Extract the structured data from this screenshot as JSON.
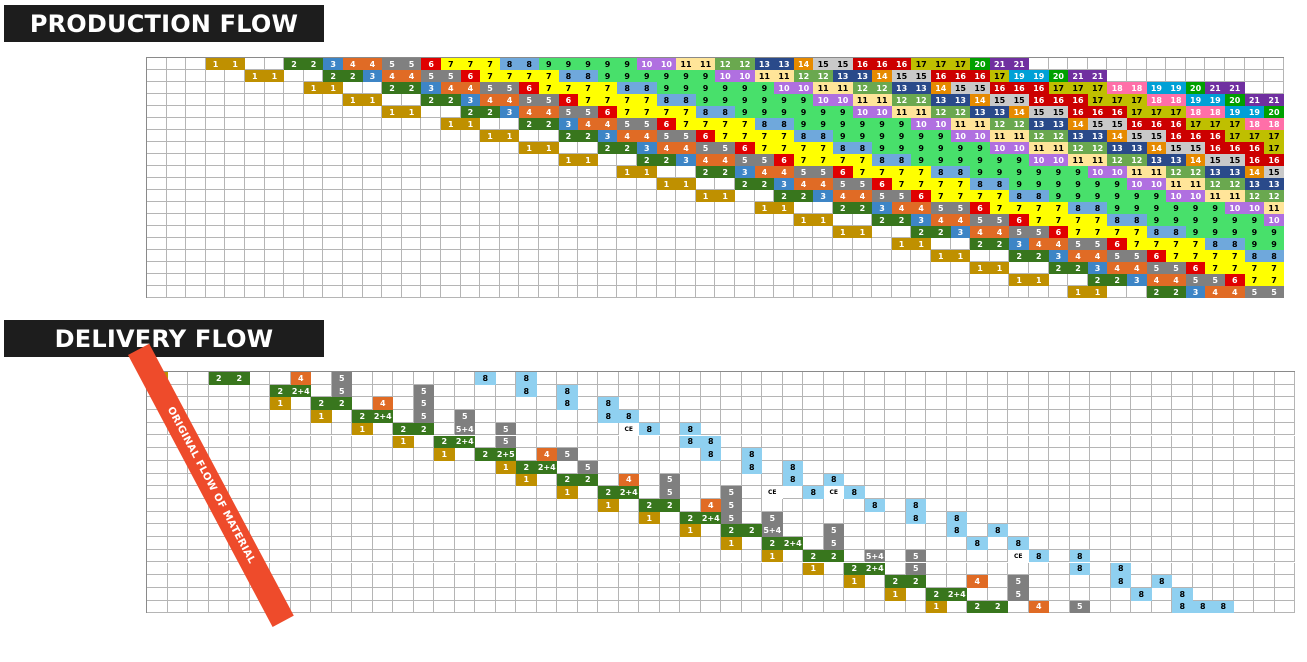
{
  "production": {
    "title": "PRODUCTION FLOW",
    "rows": [
      "1 1 . . 2 2 3 4 4 5 5 6 7 7 7 8 8 9 9 9 9 9 10 10 11 11 12 12 13 13 14 15 15 16 16 16 17 17 17 20 21 21",
      "1 1 . . 2 2 3 4 4 5 5 6 7 7 7 7 8 8 9 9 9 9 9 9 10 10 11 11 12 12 13 13 14 15 15 16 16 16 17 19 19 20 21 21",
      "1 1 . . 2 2 3 4 4 5 5 6 7 7 7 7 8 8 9 9 9 9 9 9 10 10 11 11 12 12 13 13 14 15 15 16 16 16 17 17 17 18 18 19 19 20 21 21",
      "1 1 . . 2 2 3 4 4 5 5 6 7 7 7 7 8 8 9 9 9 9 9 9 10 10 11 11 12 12 13 13 14 15 15 16 16 16 17 17 17 18 18 19 19 20 21 21",
      "1 1 . . 2 2 3 4 4 5 5 6 7 7 7 7 8 8 9 9 9 9 9 9 10 10 11 11 12 12 13 13 14 15 15 16 16 16 17 17 17 18 18 19 19 20",
      "1 1 . . 2 2 3 4 4 5 5 6 7 7 7 7 8 8 9 9 9 9 9 9 10 10 11 11 12 12 13 13 14 15 15 16 16 16 17 17 17 18 18 19",
      "1 1 . . 2 2 3 4 4 5 5 6 7 7 7 7 8 8 9 9 9 9 9 9 10 10 11 11 12 12 13 13 14 15 15 16 16 16 17 17 17 18",
      "1 1 . . 2 2 3 4 4 5 5 6 7 7 7 7 8 8 9 9 9 9 9 9 10 10 11 11 12 12 13 13 14 15 15 16 16 16 17 17",
      "1 1 . . 2 2 3 4 4 5 5 6 7 7 7 7 8 8 9 9 9 9 9 9 10 10 11 11 12 12 13 13 14 15 15 16 16 16",
      "1 1 . . 2 2 3 4 4 5 5 6 7 7 7 7 8 8 9 9 9 9 9 9 10 10 11 11 12 12 13 13 14 15 15 16",
      "1 1 . . 2 2 3 4 4 5 5 6 7 7 7 7 8 8 9 9 9 9 9 9 10 10 11 11 12 12 13 13 14 15",
      "1 1 . . 2 2 3 4 4 5 5 6 7 7 7 7 8 8 9 9 9 9 9 9 10 10 11 11 12 12 13",
      "1 1 . . 2 2 3 4 4 5 5 6 7 7 7 7 8 8 9 9 9 9 9 9 10 10 11 11 12 12",
      "1 1 . . 2 2 3 4 4 5 5 6 7 7 7 7 8 8 9 9 9 9 9 9 10 10 11 11",
      "1 1 . . 2 2 3 4 4 5 5 6 7 7 7 7 8 8 9 9 9 9 9 9 10 10",
      "1 1 . . 2 2 3 4 4 5 5 6 7 7 7 7 8 8 9 9 9 9 9 9",
      "1 1 . . 2 2 3 4 4 5 5 6 7 7 7 7 8 8 9 9 9 9",
      "1 1 . . 2 2 3 4 4 5 5 6 7 7 7 7 8 8 9 9",
      "1 1 . . 2 2 3 4 4 5 5 6 7 7 7 7 8 8",
      "1 1 . . 2 2 3 4 4 5 5 6 7 7 7 7 8 8"
    ],
    "colors": {
      "1": "#bf9000",
      "2": "#38761d",
      "3": "#3d85c6",
      "4": "#e06b25",
      "5": "#808080",
      "6": "#e00000",
      "7": "#ffff00",
      "8": "#6fa8dc",
      "9": "#48e06b",
      "10": "#b070e0",
      "11": "#ffe599",
      "12": "#6aa84f",
      "13": "#2a4a8a",
      "14": "#e68a00",
      "15": "#c9c9c9",
      "16": "#cc0000",
      "17": "#bfbf00",
      "18": "#ff6fa8",
      "19": "#00a0d6",
      "20": "#00a000",
      "21": "#7030a0"
    },
    "light_text": [
      "2",
      "3",
      "4",
      "5",
      "6",
      "10",
      "12",
      "13",
      "14",
      "16",
      "18",
      "19",
      "20",
      "21",
      "1"
    ]
  },
  "delivery": {
    "title": "DELIVERY FLOW",
    "arrow_label": "ORIGINAL FLOW OF MATERIAL",
    "rows": [
      [
        [
          0,
          "1"
        ],
        [
          3,
          "2"
        ],
        [
          4,
          "2"
        ],
        [
          7,
          "4"
        ],
        [
          9,
          "5"
        ],
        [
          16,
          "8"
        ],
        [
          18,
          "8"
        ]
      ],
      [
        [
          6,
          "2"
        ],
        [
          7,
          "2+4"
        ],
        [
          9,
          "5"
        ],
        [
          13,
          "5"
        ],
        [
          18,
          "8"
        ],
        [
          20,
          "8"
        ]
      ],
      [
        [
          6,
          "1"
        ],
        [
          8,
          "2"
        ],
        [
          9,
          "2"
        ],
        [
          11,
          "4"
        ],
        [
          13,
          "5"
        ],
        [
          20,
          "8"
        ],
        [
          22,
          "8"
        ]
      ],
      [
        [
          8,
          "1"
        ],
        [
          10,
          "2"
        ],
        [
          11,
          "2+4"
        ],
        [
          13,
          "5"
        ],
        [
          15,
          "5"
        ],
        [
          22,
          "8"
        ],
        [
          23,
          "8"
        ]
      ],
      [
        [
          10,
          "1"
        ],
        [
          12,
          "2"
        ],
        [
          13,
          "2"
        ],
        [
          15,
          "5+4"
        ],
        [
          17,
          "5"
        ],
        [
          23,
          "CE"
        ],
        [
          24,
          "8"
        ],
        [
          26,
          "8"
        ]
      ],
      [
        [
          12,
          "1"
        ],
        [
          14,
          "2"
        ],
        [
          15,
          "2+4"
        ],
        [
          17,
          "5"
        ],
        [
          26,
          "8"
        ],
        [
          27,
          "8"
        ]
      ],
      [
        [
          14,
          "1"
        ],
        [
          16,
          "2"
        ],
        [
          17,
          "2+5"
        ],
        [
          19,
          "4"
        ],
        [
          20,
          "5"
        ],
        [
          27,
          "8"
        ],
        [
          29,
          "8"
        ]
      ],
      [
        [
          17,
          "1"
        ],
        [
          18,
          "2"
        ],
        [
          19,
          "2+4"
        ],
        [
          21,
          "5"
        ],
        [
          29,
          "8"
        ],
        [
          31,
          "8"
        ]
      ],
      [
        [
          18,
          "1"
        ],
        [
          20,
          "2"
        ],
        [
          21,
          "2"
        ],
        [
          23,
          "4"
        ],
        [
          25,
          "5"
        ],
        [
          31,
          "8"
        ],
        [
          33,
          "8"
        ]
      ],
      [
        [
          20,
          "1"
        ],
        [
          22,
          "2"
        ],
        [
          23,
          "2+4"
        ],
        [
          25,
          "5"
        ],
        [
          28,
          "5"
        ],
        [
          30,
          "CE"
        ],
        [
          32,
          "8"
        ],
        [
          33,
          "CE"
        ],
        [
          34,
          "8"
        ]
      ],
      [
        [
          22,
          "1"
        ],
        [
          24,
          "2"
        ],
        [
          25,
          "2"
        ],
        [
          27,
          "4"
        ],
        [
          28,
          "5"
        ],
        [
          35,
          "8"
        ],
        [
          37,
          "8"
        ]
      ],
      [
        [
          24,
          "1"
        ],
        [
          26,
          "2"
        ],
        [
          27,
          "2+4"
        ],
        [
          28,
          "5"
        ],
        [
          30,
          "5"
        ],
        [
          37,
          "8"
        ],
        [
          39,
          "8"
        ]
      ],
      [
        [
          26,
          "1"
        ],
        [
          28,
          "2"
        ],
        [
          29,
          "2"
        ],
        [
          30,
          "5+4"
        ],
        [
          33,
          "5"
        ],
        [
          39,
          "8"
        ],
        [
          41,
          "8"
        ]
      ],
      [
        [
          28,
          "1"
        ],
        [
          30,
          "2"
        ],
        [
          31,
          "2+4"
        ],
        [
          33,
          "5"
        ],
        [
          40,
          "8"
        ],
        [
          42,
          "8"
        ]
      ],
      [
        [
          30,
          "1"
        ],
        [
          32,
          "2"
        ],
        [
          33,
          "2"
        ],
        [
          35,
          "5+4"
        ],
        [
          37,
          "5"
        ],
        [
          42,
          "CE"
        ],
        [
          43,
          "8"
        ],
        [
          45,
          "8"
        ]
      ],
      [
        [
          32,
          "1"
        ],
        [
          34,
          "2"
        ],
        [
          35,
          "2+4"
        ],
        [
          37,
          "5"
        ],
        [
          45,
          "8"
        ],
        [
          47,
          "8"
        ]
      ],
      [
        [
          34,
          "1"
        ],
        [
          36,
          "2"
        ],
        [
          37,
          "2"
        ],
        [
          40,
          "4"
        ],
        [
          42,
          "5"
        ],
        [
          47,
          "8"
        ],
        [
          49,
          "8"
        ]
      ],
      [
        [
          36,
          "1"
        ],
        [
          38,
          "2"
        ],
        [
          39,
          "2+4"
        ],
        [
          42,
          "5"
        ],
        [
          48,
          "8"
        ],
        [
          50,
          "8"
        ]
      ],
      [
        [
          38,
          "1"
        ],
        [
          40,
          "2"
        ],
        [
          41,
          "2"
        ],
        [
          43,
          "4"
        ],
        [
          45,
          "5"
        ],
        [
          50,
          "8"
        ],
        [
          51,
          "8"
        ],
        [
          52,
          "8"
        ]
      ]
    ]
  }
}
